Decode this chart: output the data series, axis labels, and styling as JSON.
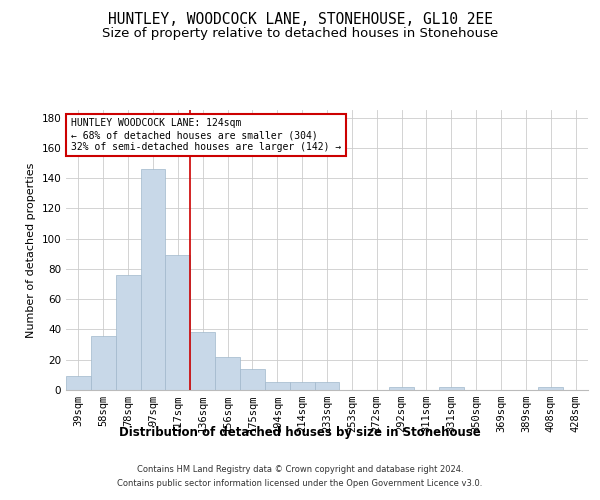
{
  "title": "HUNTLEY, WOODCOCK LANE, STONEHOUSE, GL10 2EE",
  "subtitle": "Size of property relative to detached houses in Stonehouse",
  "xlabel": "Distribution of detached houses by size in Stonehouse",
  "ylabel": "Number of detached properties",
  "footer_line1": "Contains HM Land Registry data © Crown copyright and database right 2024.",
  "footer_line2": "Contains public sector information licensed under the Open Government Licence v3.0.",
  "categories": [
    "39sqm",
    "58sqm",
    "78sqm",
    "97sqm",
    "117sqm",
    "136sqm",
    "156sqm",
    "175sqm",
    "194sqm",
    "214sqm",
    "233sqm",
    "253sqm",
    "272sqm",
    "292sqm",
    "311sqm",
    "331sqm",
    "350sqm",
    "369sqm",
    "389sqm",
    "408sqm",
    "428sqm"
  ],
  "values": [
    9,
    36,
    76,
    146,
    89,
    38,
    22,
    14,
    5,
    5,
    5,
    0,
    0,
    2,
    0,
    2,
    0,
    0,
    0,
    2,
    0
  ],
  "bar_color": "#c8d8e8",
  "bar_edgecolor": "#a0b8cc",
  "vline_x": 4.5,
  "vline_color": "#cc0000",
  "annotation_text": "HUNTLEY WOODCOCK LANE: 124sqm\n← 68% of detached houses are smaller (304)\n32% of semi-detached houses are larger (142) →",
  "annotation_box_color": "#ffffff",
  "annotation_box_edgecolor": "#cc0000",
  "ylim": [
    0,
    185
  ],
  "yticks": [
    0,
    20,
    40,
    60,
    80,
    100,
    120,
    140,
    160,
    180
  ],
  "grid_color": "#cccccc",
  "background_color": "#ffffff",
  "title_fontsize": 10.5,
  "subtitle_fontsize": 9.5,
  "xlabel_fontsize": 8.5,
  "ylabel_fontsize": 8,
  "tick_fontsize": 7.5,
  "annotation_fontsize": 7,
  "footer_fontsize": 6
}
